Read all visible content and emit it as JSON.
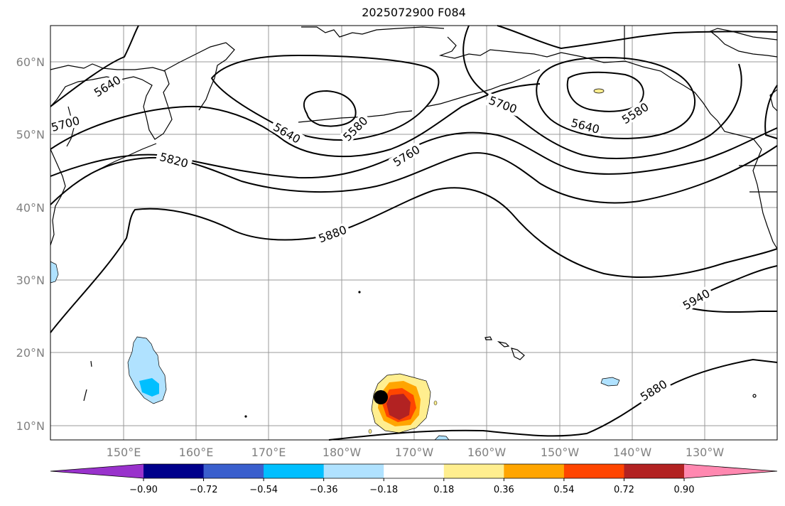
{
  "title": "2025072900 F084",
  "map": {
    "lat_labels": [
      "60°N",
      "50°N",
      "40°N",
      "30°N",
      "20°N",
      "10°N"
    ],
    "lon_labels": [
      "150°E",
      "160°E",
      "170°E",
      "180°W",
      "170°W",
      "160°W",
      "150°W",
      "140°W",
      "130°W"
    ],
    "contour_labels": [
      "5640",
      "5700",
      "5820",
      "5640",
      "5580",
      "5760",
      "5700",
      "5640",
      "5580",
      "5880",
      "5940",
      "5880"
    ],
    "marker": "storm-center-dot"
  },
  "colorbar": {
    "colors": [
      "#9932cc",
      "#00008b",
      "#3a5fcd",
      "#00bfff",
      "#b0e2ff",
      "#ffffff",
      "#ffee8f",
      "#ffa500",
      "#ff4500",
      "#b22222",
      "#ff88b0"
    ],
    "tick_labels": [
      "−0.90",
      "−0.72",
      "−0.54",
      "−0.36",
      "−0.18",
      "0.18",
      "0.36",
      "0.54",
      "0.72",
      "0.90"
    ]
  }
}
